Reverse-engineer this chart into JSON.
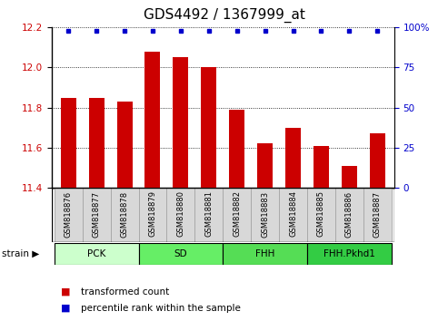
{
  "title": "GDS4492 / 1367999_at",
  "samples": [
    "GSM818876",
    "GSM818877",
    "GSM818878",
    "GSM818879",
    "GSM818880",
    "GSM818881",
    "GSM818882",
    "GSM818883",
    "GSM818884",
    "GSM818885",
    "GSM818886",
    "GSM818887"
  ],
  "transformed_counts": [
    11.85,
    11.85,
    11.83,
    12.08,
    12.05,
    12.0,
    11.79,
    11.62,
    11.7,
    11.61,
    11.51,
    11.67
  ],
  "y_min": 11.4,
  "y_max": 12.2,
  "y_ticks": [
    11.4,
    11.6,
    11.8,
    12.0,
    12.2
  ],
  "right_y_ticks": [
    0,
    25,
    50,
    75,
    100
  ],
  "right_y_tick_positions": [
    11.4,
    11.6,
    11.8,
    12.0,
    12.2
  ],
  "groups": [
    {
      "label": "PCK",
      "start": 0,
      "end": 3,
      "color": "#ccffcc"
    },
    {
      "label": "SD",
      "start": 3,
      "end": 6,
      "color": "#66ee66"
    },
    {
      "label": "FHH",
      "start": 6,
      "end": 9,
      "color": "#55dd55"
    },
    {
      "label": "FHH.Pkhd1",
      "start": 9,
      "end": 12,
      "color": "#33cc44"
    }
  ],
  "bar_color": "#cc0000",
  "dot_color": "#0000cc",
  "title_fontsize": 11,
  "axis_label_color_left": "#cc0000",
  "axis_label_color_right": "#0000cc",
  "label_box_color": "#d8d8d8",
  "label_box_edge_color": "#aaaaaa"
}
